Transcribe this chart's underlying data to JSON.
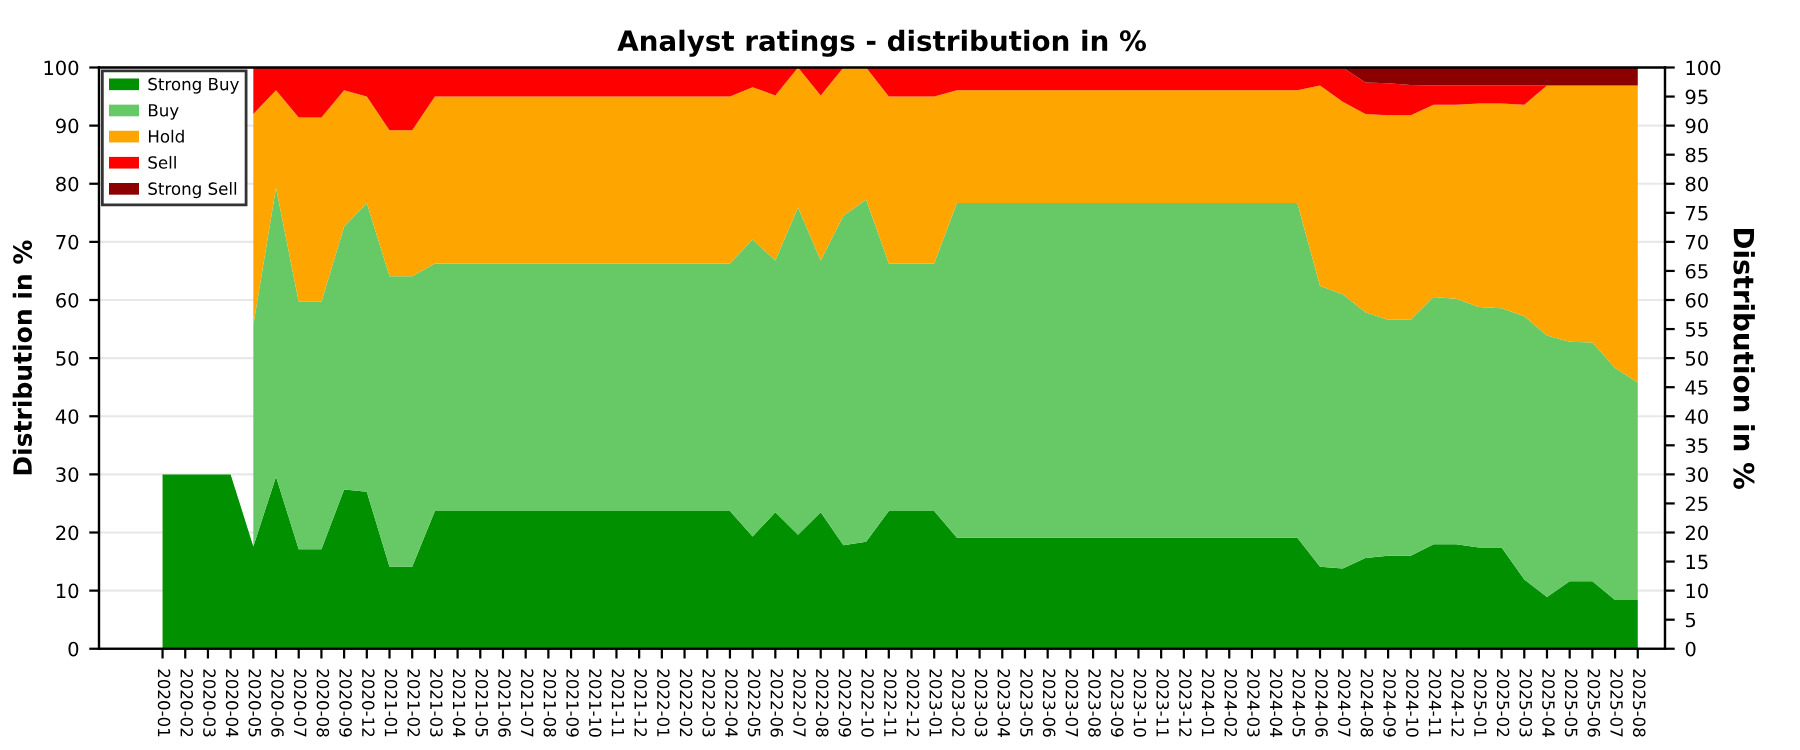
{
  "chart_data": {
    "type": "area",
    "title": "Analyst ratings - distribution in %",
    "ylabel": "Distribution in %",
    "y2label": "Distribution in %",
    "categories": [
      "2020-01",
      "2020-02",
      "2020-03",
      "2020-04",
      "2020-05",
      "2020-06",
      "2020-07",
      "2020-08",
      "2020-09",
      "2020-12",
      "2021-01",
      "2021-02",
      "2021-03",
      "2021-04",
      "2021-05",
      "2021-06",
      "2021-07",
      "2021-08",
      "2021-09",
      "2021-10",
      "2021-11",
      "2021-12",
      "2022-01",
      "2022-02",
      "2022-03",
      "2022-04",
      "2022-05",
      "2022-06",
      "2022-07",
      "2022-08",
      "2022-09",
      "2022-10",
      "2022-11",
      "2022-12",
      "2023-01",
      "2023-02",
      "2023-03",
      "2023-04",
      "2023-05",
      "2023-06",
      "2023-07",
      "2023-08",
      "2023-09",
      "2023-10",
      "2023-11",
      "2023-12",
      "2024-01",
      "2024-02",
      "2024-03",
      "2024-04",
      "2024-05",
      "2024-06",
      "2024-07",
      "2024-08",
      "2024-09",
      "2024-10",
      "2024-11",
      "2024-12",
      "2025-01",
      "2025-02",
      "2025-03",
      "2025-04",
      "2025-05",
      "2025-06",
      "2025-07",
      "2025-08"
    ],
    "stacked": true,
    "series": [
      {
        "name": "Strong Buy",
        "color": "#009000",
        "values": [
          30,
          30,
          30,
          30,
          17.6,
          29.6,
          17.1,
          17.1,
          27.4,
          27.0,
          14.1,
          14.1,
          23.7,
          23.7,
          23.7,
          23.7,
          23.7,
          23.7,
          23.7,
          23.7,
          23.7,
          23.7,
          23.7,
          23.7,
          23.7,
          23.7,
          19.3,
          23.5,
          19.6,
          23.5,
          17.8,
          18.4,
          23.7,
          23.7,
          23.7,
          19.1,
          19.1,
          19.1,
          19.1,
          19.1,
          19.1,
          19.1,
          19.1,
          19.1,
          19.1,
          19.1,
          19.1,
          19.1,
          19.1,
          19.1,
          19.1,
          14.1,
          13.8,
          15.6,
          16.0,
          16.0,
          18.0,
          18.0,
          17.4,
          17.4,
          11.9,
          8.9,
          11.6,
          11.6,
          8.4,
          8.4
        ]
      },
      {
        "name": "Buy",
        "color": "#66c966",
        "values": [
          null,
          null,
          null,
          null,
          38.1,
          49.7,
          42.6,
          42.6,
          45.2,
          49.7,
          50.0,
          50.0,
          42.6,
          42.6,
          42.6,
          42.6,
          42.6,
          42.6,
          42.6,
          42.6,
          42.6,
          42.6,
          42.6,
          42.6,
          42.6,
          42.6,
          51.1,
          43.3,
          56.3,
          43.3,
          56.7,
          58.9,
          42.6,
          42.6,
          42.6,
          57.6,
          57.6,
          57.6,
          57.6,
          57.6,
          57.6,
          57.6,
          57.6,
          57.6,
          57.6,
          57.6,
          57.6,
          57.6,
          57.6,
          57.6,
          57.6,
          48.3,
          47.2,
          42.3,
          40.6,
          40.6,
          42.5,
          42.2,
          41.4,
          41.2,
          45.3,
          45.0,
          41.2,
          41.1,
          39.9,
          37.4
        ]
      },
      {
        "name": "Hold",
        "color": "#ffa500",
        "values": [
          null,
          null,
          null,
          null,
          36.3,
          16.8,
          31.7,
          31.7,
          23.5,
          18.3,
          25.1,
          25.1,
          28.7,
          28.7,
          28.7,
          28.7,
          28.7,
          28.7,
          28.7,
          28.7,
          28.7,
          28.7,
          28.7,
          28.7,
          28.7,
          28.7,
          26.2,
          28.4,
          24.1,
          28.4,
          25.5,
          22.7,
          28.7,
          28.7,
          28.7,
          19.4,
          19.4,
          19.4,
          19.4,
          19.4,
          19.4,
          19.4,
          19.4,
          19.4,
          19.4,
          19.4,
          19.4,
          19.4,
          19.4,
          19.4,
          19.4,
          34.5,
          33.1,
          34.1,
          35.2,
          35.2,
          33.1,
          33.4,
          35.0,
          35.2,
          36.4,
          43.0,
          44.1,
          44.2,
          48.6,
          51.1
        ]
      },
      {
        "name": "Sell",
        "color": "#ff0000",
        "values": [
          null,
          null,
          null,
          null,
          8,
          3.9,
          8.6,
          8.6,
          3.9,
          5.0,
          10.8,
          10.8,
          5.0,
          5.0,
          5.0,
          5.0,
          5.0,
          5.0,
          5.0,
          5.0,
          5.0,
          5.0,
          5.0,
          5.0,
          5.0,
          5.0,
          3.4,
          4.8,
          0,
          4.8,
          0,
          0,
          5.0,
          5.0,
          5.0,
          3.9,
          3.9,
          3.9,
          3.9,
          3.9,
          3.9,
          3.9,
          3.9,
          3.9,
          3.9,
          3.9,
          3.9,
          3.9,
          3.9,
          3.9,
          3.9,
          3.1,
          5.9,
          5.4,
          5.5,
          5.2,
          3.3,
          3.3,
          3.1,
          3.1,
          3.3,
          0,
          0,
          0,
          0,
          0
        ]
      },
      {
        "name": "Strong Sell",
        "color": "#8b0000",
        "values": [
          null,
          null,
          null,
          null,
          0,
          0,
          0,
          0,
          0,
          0,
          0,
          0,
          0,
          0,
          0,
          0,
          0,
          0,
          0,
          0,
          0,
          0,
          0,
          0,
          0,
          0,
          0,
          0,
          0,
          0,
          0,
          0,
          0,
          0,
          0,
          0,
          0,
          0,
          0,
          0,
          0,
          0,
          0,
          0,
          0,
          0,
          0,
          0,
          0,
          0,
          0,
          0,
          0,
          2.6,
          2.7,
          3.0,
          3.1,
          3.1,
          3.1,
          3.1,
          3.1,
          3.1,
          3.1,
          3.1,
          3.1,
          3.1
        ]
      }
    ],
    "ylim": [
      0,
      100
    ],
    "yticks": [
      0,
      10,
      20,
      30,
      40,
      50,
      60,
      70,
      80,
      90,
      100
    ],
    "y2lim": [
      0,
      100
    ],
    "y2ticks": [
      0,
      5,
      10,
      15,
      20,
      25,
      30,
      35,
      40,
      45,
      50,
      55,
      60,
      65,
      70,
      75,
      80,
      85,
      90,
      95,
      100
    ],
    "grid": "y",
    "legend": "top left"
  }
}
